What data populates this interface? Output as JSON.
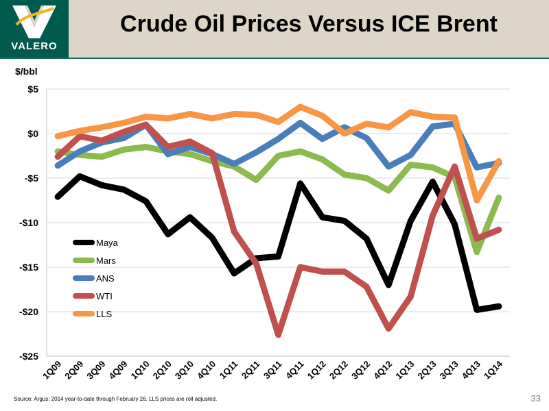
{
  "header": {
    "logo_text": "VALERO",
    "title": "Crude Oil Prices Versus ICE Brent"
  },
  "footer": {
    "source": "Source:  Argus; 2014 year-to-date through February 26. LLS prices are roll adjusted.",
    "page_number": "33"
  },
  "colors": {
    "header_bg": "#dcd5c8",
    "logo_bg": "#005a4e",
    "accent_gold": "#f2b41b"
  },
  "chart_data": {
    "type": "line",
    "title": "Crude Oil Prices Versus ICE Brent",
    "ylabel": "$/bbl",
    "xlabel": "",
    "ylim": [
      -25,
      5
    ],
    "yticks": [
      5,
      0,
      -5,
      -10,
      -15,
      -20,
      -25
    ],
    "ytick_labels": [
      "$5",
      "$0",
      "-$5",
      "-$10",
      "-$15",
      "-$20",
      "-$25"
    ],
    "grid": true,
    "legend_position": "left-middle",
    "categories": [
      "1Q09",
      "2Q09",
      "3Q09",
      "4Q09",
      "1Q10",
      "2Q10",
      "3Q10",
      "4Q10",
      "1Q11",
      "2Q11",
      "3Q11",
      "4Q11",
      "1Q12",
      "2Q12",
      "3Q12",
      "4Q12",
      "1Q13",
      "2Q13",
      "3Q13",
      "4Q13",
      "1Q14"
    ],
    "series": [
      {
        "name": "Maya",
        "color": "#000000",
        "values": [
          -7.1,
          -4.8,
          -5.8,
          -6.3,
          -7.6,
          -11.3,
          -9.4,
          -11.7,
          -15.7,
          -14.0,
          -13.8,
          -5.6,
          -9.4,
          -9.8,
          -11.8,
          -17.0,
          -9.8,
          -5.4,
          -10.2,
          -19.8,
          -19.4
        ]
      },
      {
        "name": "Mars",
        "color": "#8dba4e",
        "values": [
          -2.0,
          -2.4,
          -2.6,
          -1.8,
          -1.5,
          -2.0,
          -2.3,
          -3.1,
          -3.7,
          -5.2,
          -2.5,
          -2.0,
          -2.9,
          -4.6,
          -5.0,
          -6.4,
          -3.5,
          -3.8,
          -4.9,
          -13.3,
          -7.2
        ]
      },
      {
        "name": "ANS",
        "color": "#4a7ebb",
        "values": [
          -3.6,
          -2.0,
          -1.0,
          -0.5,
          1.0,
          -2.3,
          -1.5,
          -2.3,
          -3.4,
          -2.1,
          -0.6,
          1.2,
          -0.6,
          0.7,
          -0.5,
          -3.7,
          -2.4,
          0.8,
          1.1,
          -3.8,
          -3.3
        ]
      },
      {
        "name": "WTI",
        "color": "#c0504d",
        "values": [
          -2.6,
          -0.3,
          -0.8,
          0.2,
          1.0,
          -1.5,
          -0.9,
          -2.2,
          -11.0,
          -14.6,
          -22.6,
          -15.0,
          -15.5,
          -15.5,
          -17.2,
          -21.9,
          -18.3,
          -9.2,
          -3.7,
          -11.8,
          -10.8
        ]
      },
      {
        "name": "LLS",
        "color": "#f79646",
        "values": [
          -0.3,
          0.3,
          0.7,
          1.2,
          1.9,
          1.7,
          2.2,
          1.7,
          2.2,
          2.1,
          1.3,
          3.0,
          2.0,
          0.0,
          1.1,
          0.7,
          2.4,
          1.9,
          1.8,
          -7.5,
          -3.1
        ]
      }
    ]
  }
}
